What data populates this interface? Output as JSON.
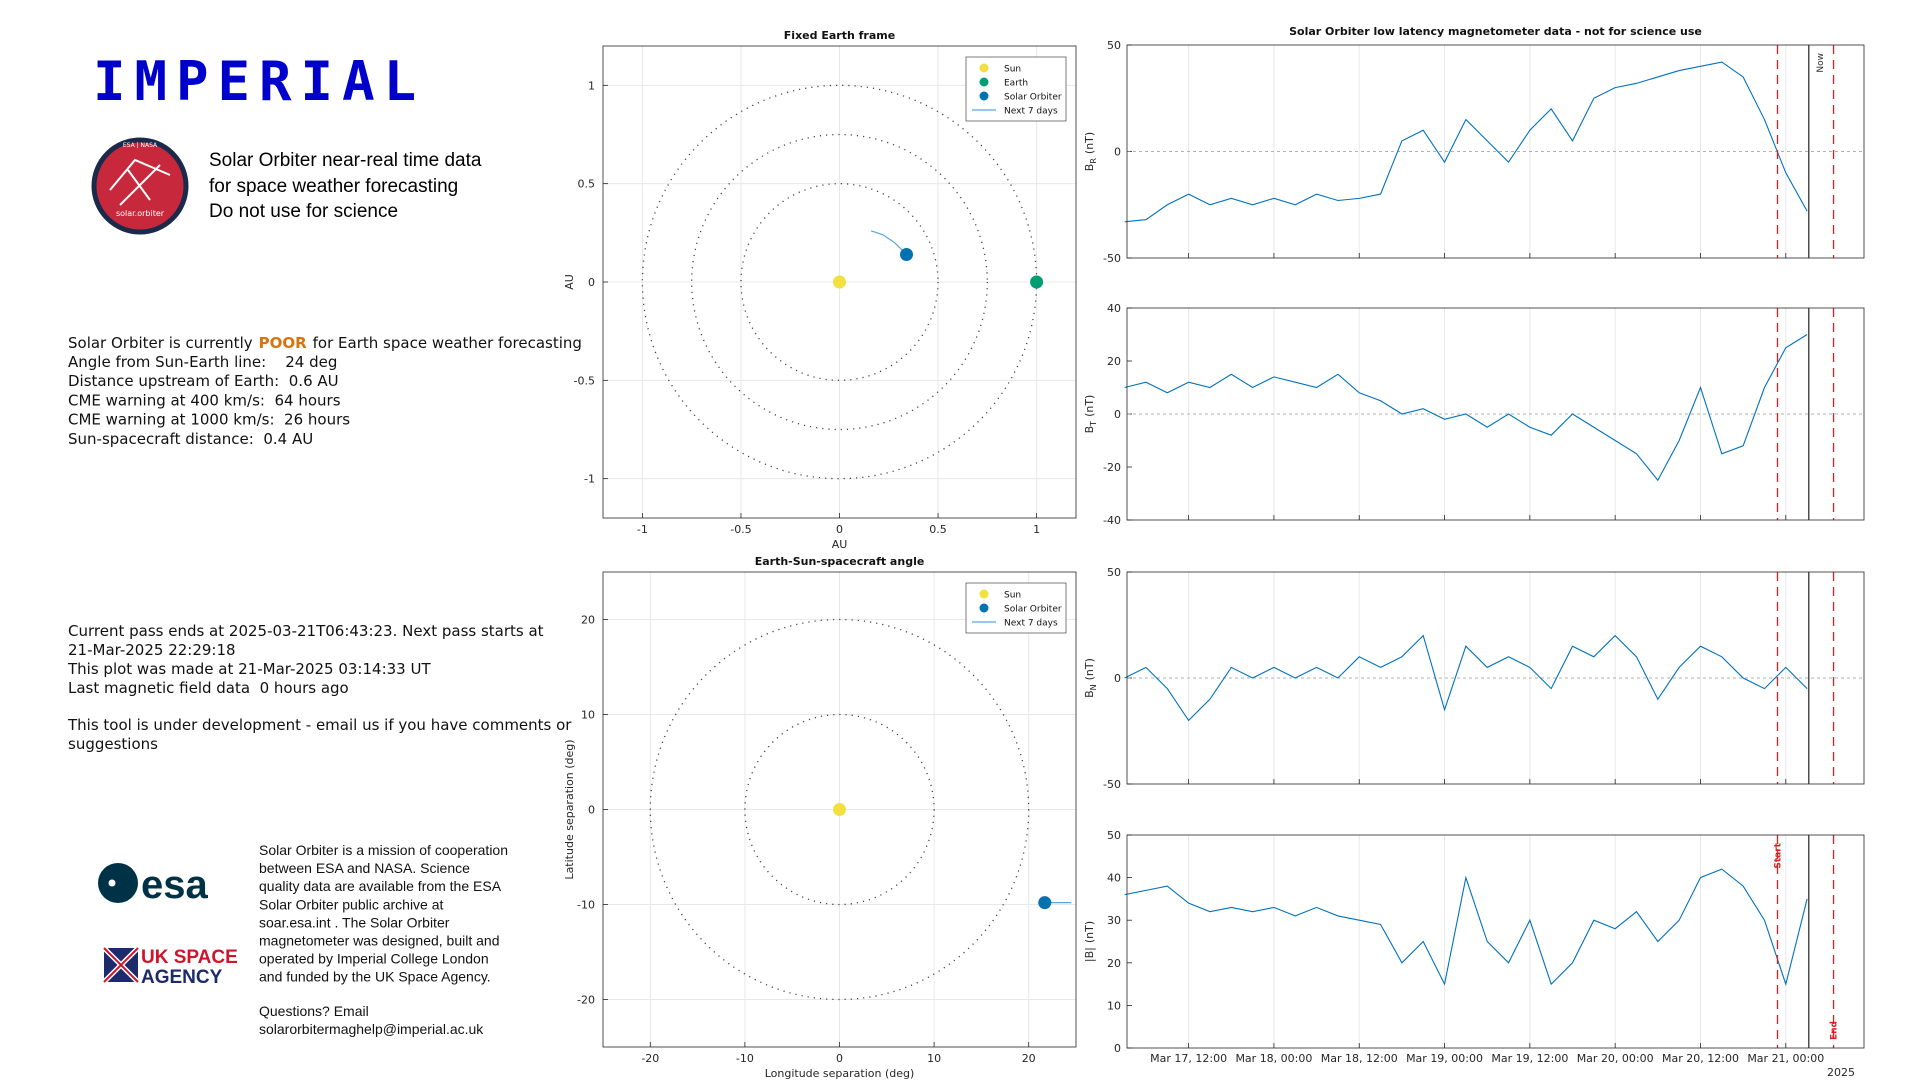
{
  "header": {
    "logo": "IMPERIAL",
    "badge_mission": "ESA | NASA",
    "badge_label": "solar.orbiter",
    "tagline": [
      "Solar Orbiter near-real time data",
      "for space weather forecasting",
      "Do not use for science"
    ]
  },
  "status": {
    "prefix": "Solar Orbiter is currently",
    "rating": "POOR",
    "suffix": "for Earth space weather forecasting",
    "lines": [
      "Angle from Sun-Earth line:    24 deg",
      "Distance upstream of Earth:  0.6 AU",
      "CME warning at 400 km/s:  64 hours",
      "CME warning at 1000 km/s:  26 hours",
      "Sun-spacecraft distance:  0.4 AU"
    ]
  },
  "pass_info": {
    "lines": [
      "Current pass ends at 2025-03-21T06:43:23. Next pass starts at",
      "21-Mar-2025 22:29:18",
      "This plot was made at 21-Mar-2025 03:14:33 UT",
      "Last magnetic field data  0 hours ago"
    ],
    "note": [
      "This tool is under development - email us if you have comments or",
      "suggestions"
    ]
  },
  "logos": {
    "esa": "esa",
    "uksa": [
      "UK SPACE",
      "AGENCY"
    ]
  },
  "footer": {
    "about": [
      "Solar Orbiter is a mission of cooperation",
      "between ESA and NASA. Science",
      "quality data are available from the ESA",
      "Solar Orbiter public archive at",
      "soar.esa.int . The Solar Orbiter",
      "magnetometer was designed, built and",
      "operated by Imperial College London",
      "and funded by the UK Space Agency."
    ],
    "contact": [
      "Questions? Email",
      "solarorbitermaghelp@imperial.ac.uk"
    ]
  },
  "chart_data": [
    {
      "type": "scatter",
      "title": "Fixed Earth frame",
      "xlabel": "AU",
      "ylabel": "AU",
      "xlim": [
        -1.2,
        1.2
      ],
      "ylim": [
        -1.2,
        1.2
      ],
      "xticks": [
        -1,
        -0.5,
        0,
        0.5,
        1
      ],
      "yticks": [
        -1,
        -0.5,
        0,
        0.5,
        1
      ],
      "grid": true,
      "legend": "upper right",
      "circles": [
        0.5,
        0.75,
        1
      ],
      "points": [
        {
          "name": "Sun",
          "color": "#f2e041",
          "x": 0,
          "y": 0
        },
        {
          "name": "Earth",
          "color": "#009e73",
          "x": 1,
          "y": 0
        },
        {
          "name": "Solar Orbiter",
          "color": "#0072b2",
          "x": 0.34,
          "y": 0.14
        }
      ],
      "track": {
        "name": "Next 7 days",
        "color": "#56a8e0",
        "x": [
          0.16,
          0.22,
          0.28,
          0.34
        ],
        "y": [
          0.26,
          0.24,
          0.2,
          0.14
        ]
      }
    },
    {
      "type": "scatter",
      "title": "Earth-Sun-spacecraft angle",
      "xlabel": "Longitude separation (deg)",
      "ylabel": "Latitude separation (deg)",
      "xlim": [
        -25,
        25
      ],
      "ylim": [
        -25,
        25
      ],
      "xticks": [
        -20,
        -10,
        0,
        10,
        20
      ],
      "yticks": [
        -20,
        -10,
        0,
        10,
        20
      ],
      "grid": true,
      "legend": "upper right",
      "circles": [
        10,
        20
      ],
      "points": [
        {
          "name": "Sun",
          "color": "#f2e041",
          "x": 0,
          "y": 0
        },
        {
          "name": "Solar Orbiter",
          "color": "#0072b2",
          "x": 21.7,
          "y": -9.8
        }
      ],
      "track": {
        "name": "Next 7 days",
        "color": "#56a8e0",
        "x": [
          21.7,
          24.5
        ],
        "y": [
          -9.8,
          -9.8
        ]
      }
    },
    {
      "type": "line",
      "title": "Solar Orbiter low latency magnetometer data - not for science use",
      "xlim": [
        "2025-03-17 03:20",
        "2025-03-21 11:00"
      ],
      "xticks": [
        {
          "value": "2025-03-17 12:00",
          "label": "Mar 17, 12:00"
        },
        {
          "value": "2025-03-18 00:00",
          "label": "Mar 18, 00:00"
        },
        {
          "value": "2025-03-18 12:00",
          "label": "Mar 18, 12:00"
        },
        {
          "value": "2025-03-19 00:00",
          "label": "Mar 19, 00:00"
        },
        {
          "value": "2025-03-19 12:00",
          "label": "Mar 19, 12:00"
        },
        {
          "value": "2025-03-20 00:00",
          "label": "Mar 20, 00:00"
        },
        {
          "value": "2025-03-20 12:00",
          "label": "Mar 20, 12:00"
        },
        {
          "value": "2025-03-21 00:00",
          "label": "Mar 21, 00:00"
        }
      ],
      "x_year": "2025",
      "grid": true,
      "color": "#0072bd",
      "markers": [
        {
          "label": "Start",
          "x": "2025-03-20 22:50",
          "color": "#e41a1c"
        },
        {
          "label": "Now",
          "x": "2025-03-21 03:14",
          "color": "#333333"
        },
        {
          "label": "End",
          "x": "2025-03-21 06:43",
          "color": "#e41a1c"
        }
      ],
      "x": [
        "2025-03-17 03:00",
        "2025-03-17 06:00",
        "2025-03-17 09:00",
        "2025-03-17 12:00",
        "2025-03-17 15:00",
        "2025-03-17 18:00",
        "2025-03-17 21:00",
        "2025-03-18 00:00",
        "2025-03-18 03:00",
        "2025-03-18 06:00",
        "2025-03-18 09:00",
        "2025-03-18 12:00",
        "2025-03-18 15:00",
        "2025-03-18 18:00",
        "2025-03-18 21:00",
        "2025-03-19 00:00",
        "2025-03-19 03:00",
        "2025-03-19 06:00",
        "2025-03-19 09:00",
        "2025-03-19 12:00",
        "2025-03-19 15:00",
        "2025-03-19 18:00",
        "2025-03-19 21:00",
        "2025-03-20 00:00",
        "2025-03-20 03:00",
        "2025-03-20 06:00",
        "2025-03-20 09:00",
        "2025-03-20 12:00",
        "2025-03-20 15:00",
        "2025-03-20 18:00",
        "2025-03-20 21:00",
        "2025-03-21 00:00",
        "2025-03-21 03:00"
      ],
      "panels": [
        {
          "ylabel": "B",
          "ylabel_sub": "R",
          "unit": "(nT)",
          "ylim": [
            -50,
            50
          ],
          "yticks": [
            -50,
            0,
            50
          ],
          "zero_line": true,
          "values": [
            -33,
            -32,
            -25,
            -20,
            -25,
            -22,
            -25,
            -22,
            -25,
            -20,
            -23,
            -22,
            -20,
            5,
            10,
            -5,
            15,
            5,
            -5,
            10,
            20,
            5,
            25,
            30,
            32,
            35,
            38,
            40,
            42,
            35,
            15,
            -10,
            -28
          ]
        },
        {
          "ylabel": "B",
          "ylabel_sub": "T",
          "unit": "(nT)",
          "ylim": [
            -40,
            40
          ],
          "yticks": [
            -40,
            -20,
            0,
            20,
            40
          ],
          "zero_line": true,
          "values": [
            10,
            12,
            8,
            12,
            10,
            15,
            10,
            14,
            12,
            10,
            15,
            8,
            5,
            0,
            2,
            -2,
            0,
            -5,
            0,
            -5,
            -8,
            0,
            -5,
            -10,
            -15,
            -25,
            -10,
            10,
            -15,
            -12,
            10,
            25,
            30
          ]
        },
        {
          "ylabel": "B",
          "ylabel_sub": "N",
          "unit": "(nT)",
          "ylim": [
            -50,
            50
          ],
          "yticks": [
            -50,
            0,
            50
          ],
          "zero_line": true,
          "values": [
            0,
            5,
            -5,
            -20,
            -10,
            5,
            0,
            5,
            0,
            5,
            0,
            10,
            5,
            10,
            20,
            -15,
            15,
            5,
            10,
            5,
            -5,
            15,
            10,
            20,
            10,
            -10,
            5,
            15,
            10,
            0,
            -5,
            5,
            -5
          ]
        },
        {
          "ylabel": "|B|",
          "unit": "(nT)",
          "ylim": [
            0,
            50
          ],
          "yticks": [
            0,
            10,
            20,
            30,
            40,
            50
          ],
          "zero_line": false,
          "values": [
            36,
            37,
            38,
            34,
            32,
            33,
            32,
            33,
            31,
            33,
            31,
            30,
            29,
            20,
            25,
            15,
            40,
            25,
            20,
            30,
            15,
            20,
            30,
            28,
            32,
            25,
            30,
            40,
            42,
            38,
            30,
            15,
            35
          ]
        }
      ]
    }
  ]
}
